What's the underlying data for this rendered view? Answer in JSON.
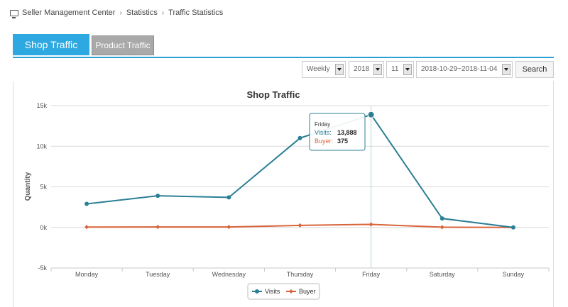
{
  "breadcrumb": {
    "items": [
      "Seller Management Center",
      "Statistics",
      "Traffic Statistics"
    ],
    "separator": "›"
  },
  "tabs": [
    {
      "label": "Shop Traffic",
      "active": true
    },
    {
      "label": "Product Traffic",
      "active": false
    }
  ],
  "filters": {
    "period": "Weekly",
    "year": "2018",
    "month": "11",
    "range": "2018-10-29~2018-11-04",
    "search_label": "Search"
  },
  "colors": {
    "accent": "#2ea8e0",
    "visits": "#2b7f95",
    "buyer": "#d9643a"
  },
  "chart_data": {
    "type": "line",
    "title": "Shop Traffic",
    "xlabel": "",
    "ylabel": "Quantity",
    "categories": [
      "Monday",
      "Tuesday",
      "Wednesday",
      "Thursday",
      "Friday",
      "Saturday",
      "Sunday"
    ],
    "ylim": [
      -5000,
      15000
    ],
    "ytick_values": [
      -5000,
      0,
      5000,
      10000,
      15000
    ],
    "ytick_labels": [
      "-5k",
      "0k",
      "5k",
      "10k",
      "15k"
    ],
    "grid": true,
    "legend_position": "bottom-center",
    "series": [
      {
        "name": "Visits",
        "values": [
          2900,
          3900,
          3700,
          11000,
          13888,
          1100,
          0
        ]
      },
      {
        "name": "Buyer",
        "values": [
          40,
          60,
          50,
          250,
          375,
          30,
          0
        ]
      }
    ],
    "tooltip": {
      "category": "Friday",
      "lines": [
        {
          "label": "Visits:",
          "value": "13,888"
        },
        {
          "label": "Buyer:",
          "value": "375"
        }
      ]
    }
  }
}
